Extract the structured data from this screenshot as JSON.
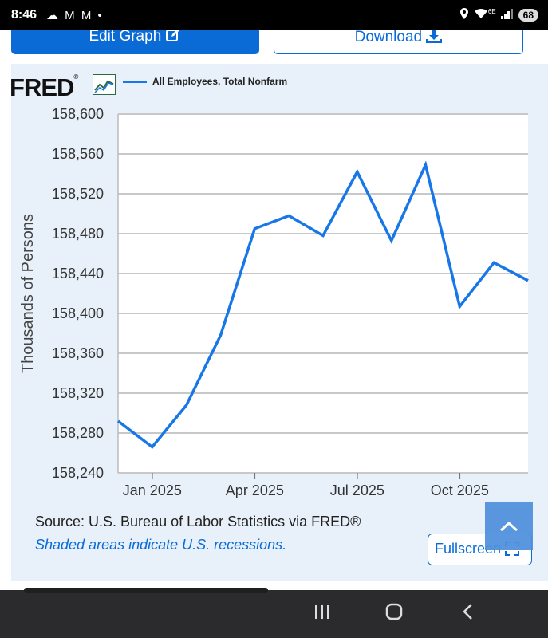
{
  "status_bar": {
    "time": "8:46",
    "left_icons": "☁ M M •",
    "battery": "68",
    "network": "6E"
  },
  "toolbar": {
    "edit_label": "Edit Graph",
    "edit_icon": "edit-icon",
    "download_label": "Download",
    "download_icon": "download-icon"
  },
  "chart_header": {
    "logo_text": "FRED",
    "logo_mark": "®",
    "series_legend": "All Employees, Total Nonfarm",
    "series_color": "#1777e8"
  },
  "chart_data": {
    "type": "line",
    "ylabel": "Thousands of Persons",
    "xlabel": "",
    "ylim": [
      158240,
      158600
    ],
    "yticks": [
      158240,
      158280,
      158320,
      158360,
      158400,
      158440,
      158480,
      158520,
      158560,
      158600
    ],
    "ytick_labels": [
      "158,240",
      "158,280",
      "158,320",
      "158,360",
      "158,400",
      "158,440",
      "158,480",
      "158,520",
      "158,560",
      "158,600"
    ],
    "xticks": [
      {
        "date": "2025-01",
        "label": "Jan 2025"
      },
      {
        "date": "2025-04",
        "label": "Apr 2025"
      },
      {
        "date": "2025-07",
        "label": "Jul 2025"
      },
      {
        "date": "2025-10",
        "label": "Oct 2025"
      }
    ],
    "grid": "horizontal",
    "series": [
      {
        "name": "All Employees, Total Nonfarm",
        "x": [
          "2024-12",
          "2025-01",
          "2025-02",
          "2025-03",
          "2025-04",
          "2025-05",
          "2025-06",
          "2025-07",
          "2025-08",
          "2025-09",
          "2025-10",
          "2025-11",
          "2025-12"
        ],
        "values": [
          158292,
          158266,
          158308,
          158378,
          158485,
          158498,
          158478,
          158542,
          158473,
          158549,
          158407,
          158451,
          158433
        ],
        "color": "#1777e8"
      }
    ]
  },
  "footer": {
    "source": "Source: U.S. Bureau of Labor Statistics via FRED®",
    "shaded_note": "Shaded areas indicate U.S. recessions.",
    "fullscreen_label": "Fullscreen",
    "fullscreen_icon": "expand-icon"
  },
  "scroll_top_icon": "chevron-up-icon",
  "nav": {
    "recents_icon": "recents-icon",
    "home_icon": "home-icon",
    "back_icon": "back-icon"
  }
}
